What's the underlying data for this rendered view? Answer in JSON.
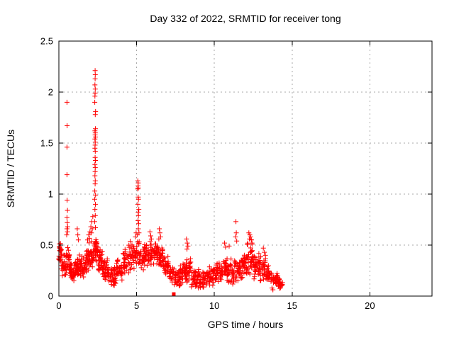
{
  "window": {
    "background": "#ffffff"
  },
  "chart_data": {
    "type": "scatter",
    "title": "Day 332 of 2022, SRMTID for receiver tong",
    "xlabel": "GPS time / hours",
    "ylabel": "SRMTID / TECUs",
    "xlim": [
      0,
      24
    ],
    "ylim": [
      0,
      2.5
    ],
    "x_ticks": [
      0,
      5,
      10,
      15,
      20
    ],
    "y_ticks": [
      0,
      0.5,
      1,
      1.5,
      2,
      2.5
    ],
    "grid": true,
    "legend": "none",
    "marker": "plus",
    "marker_color": "#ff0000",
    "grid_color": "#a8a8a8",
    "axis_color": "#000000",
    "square_point": [
      7.39,
      0.02
    ],
    "spike_points": [
      [
        0.52,
        1.9
      ],
      [
        0.53,
        1.67
      ],
      [
        0.52,
        1.46
      ],
      [
        0.52,
        1.19
      ],
      [
        0.53,
        0.94
      ],
      [
        0.55,
        0.84
      ],
      [
        0.52,
        0.77
      ],
      [
        0.54,
        0.72
      ],
      [
        0.56,
        0.68
      ],
      [
        0.52,
        0.66
      ],
      [
        0.55,
        0.63
      ],
      [
        0.5,
        0.6
      ],
      [
        1.18,
        0.66
      ],
      [
        1.22,
        0.6
      ],
      [
        1.25,
        0.55
      ],
      [
        1.85,
        0.55
      ],
      [
        1.92,
        0.6
      ],
      [
        2.0,
        0.63
      ],
      [
        2.06,
        0.68
      ],
      [
        2.12,
        0.73
      ],
      [
        2.18,
        0.78
      ],
      [
        2.09,
        0.62
      ],
      [
        2.15,
        0.66
      ],
      [
        2.33,
        2.21
      ],
      [
        2.34,
        2.17
      ],
      [
        2.33,
        2.13
      ],
      [
        2.32,
        2.07
      ],
      [
        2.34,
        2.03
      ],
      [
        2.33,
        1.99
      ],
      [
        2.32,
        1.96
      ],
      [
        2.31,
        1.9
      ],
      [
        2.36,
        1.81
      ],
      [
        2.34,
        1.78
      ],
      [
        2.35,
        1.64
      ],
      [
        2.32,
        1.62
      ],
      [
        2.34,
        1.6
      ],
      [
        2.33,
        1.58
      ],
      [
        2.35,
        1.56
      ],
      [
        2.32,
        1.54
      ],
      [
        2.34,
        1.51
      ],
      [
        2.33,
        1.48
      ],
      [
        2.32,
        1.45
      ],
      [
        2.34,
        1.42
      ],
      [
        2.33,
        1.36
      ],
      [
        2.35,
        1.33
      ],
      [
        2.32,
        1.29
      ],
      [
        2.34,
        1.26
      ],
      [
        2.33,
        1.22
      ],
      [
        2.32,
        1.18
      ],
      [
        2.34,
        1.13
      ],
      [
        2.33,
        1.1
      ],
      [
        2.31,
        1.03
      ],
      [
        2.36,
        0.99
      ],
      [
        2.3,
        0.95
      ],
      [
        2.35,
        0.9
      ],
      [
        2.32,
        0.85
      ],
      [
        2.34,
        0.79
      ],
      [
        2.3,
        0.73
      ],
      [
        2.35,
        0.67
      ],
      [
        5.08,
        1.13
      ],
      [
        5.1,
        1.11
      ],
      [
        5.09,
        1.08
      ],
      [
        5.11,
        1.06
      ],
      [
        5.07,
        1.05
      ],
      [
        5.1,
        0.97
      ],
      [
        5.12,
        0.95
      ],
      [
        5.08,
        0.9
      ],
      [
        5.14,
        0.85
      ],
      [
        5.1,
        0.82
      ],
      [
        5.12,
        0.79
      ],
      [
        5.09,
        0.74
      ],
      [
        5.13,
        0.71
      ],
      [
        5.11,
        0.66
      ],
      [
        5.15,
        0.62
      ],
      [
        5.05,
        0.6
      ],
      [
        4.92,
        0.58
      ],
      [
        4.97,
        0.62
      ],
      [
        5.86,
        0.63
      ],
      [
        5.91,
        0.59
      ],
      [
        5.95,
        0.56
      ],
      [
        6.46,
        0.66
      ],
      [
        6.5,
        0.62
      ],
      [
        6.54,
        0.58
      ],
      [
        6.43,
        0.56
      ],
      [
        8.21,
        0.56
      ],
      [
        8.26,
        0.52
      ],
      [
        8.3,
        0.49
      ],
      [
        8.24,
        0.46
      ],
      [
        10.66,
        0.52
      ],
      [
        10.72,
        0.48
      ],
      [
        10.95,
        0.49
      ],
      [
        11.39,
        0.73
      ],
      [
        11.41,
        0.62
      ],
      [
        11.36,
        0.58
      ],
      [
        11.44,
        0.54
      ],
      [
        12.22,
        0.62
      ],
      [
        12.28,
        0.6
      ],
      [
        12.33,
        0.58
      ],
      [
        12.25,
        0.56
      ],
      [
        12.38,
        0.55
      ],
      [
        12.42,
        0.52
      ],
      [
        13.15,
        0.47
      ],
      [
        13.22,
        0.43
      ],
      [
        13.28,
        0.4
      ]
    ],
    "band_clusters_note": "dense unresolvable point cloud, summarized as [x_start, x_end, count, y_min, y_max]",
    "band_clusters": [
      [
        0.0,
        0.15,
        22,
        0.27,
        0.55
      ],
      [
        0.15,
        0.45,
        28,
        0.17,
        0.46
      ],
      [
        0.45,
        0.7,
        26,
        0.2,
        0.5
      ],
      [
        0.7,
        1.0,
        32,
        0.12,
        0.35
      ],
      [
        1.0,
        1.3,
        32,
        0.13,
        0.38
      ],
      [
        1.3,
        1.6,
        30,
        0.17,
        0.42
      ],
      [
        1.6,
        1.9,
        30,
        0.22,
        0.48
      ],
      [
        1.9,
        2.2,
        28,
        0.27,
        0.58
      ],
      [
        2.2,
        2.5,
        32,
        0.3,
        0.62
      ],
      [
        2.5,
        2.8,
        32,
        0.22,
        0.52
      ],
      [
        2.8,
        3.2,
        36,
        0.15,
        0.38
      ],
      [
        3.2,
        3.7,
        38,
        0.09,
        0.3
      ],
      [
        3.7,
        4.1,
        32,
        0.14,
        0.38
      ],
      [
        4.1,
        4.5,
        32,
        0.2,
        0.47
      ],
      [
        4.5,
        4.9,
        34,
        0.24,
        0.55
      ],
      [
        4.9,
        5.2,
        24,
        0.28,
        0.58
      ],
      [
        5.2,
        5.6,
        34,
        0.25,
        0.52
      ],
      [
        5.6,
        6.0,
        34,
        0.27,
        0.55
      ],
      [
        6.0,
        6.4,
        34,
        0.29,
        0.55
      ],
      [
        6.4,
        6.7,
        28,
        0.27,
        0.55
      ],
      [
        6.7,
        7.1,
        32,
        0.17,
        0.42
      ],
      [
        7.1,
        7.5,
        28,
        0.1,
        0.33
      ],
      [
        7.5,
        7.9,
        32,
        0.07,
        0.3
      ],
      [
        7.9,
        8.2,
        28,
        0.12,
        0.38
      ],
      [
        8.2,
        8.5,
        28,
        0.12,
        0.4
      ],
      [
        8.5,
        9.0,
        38,
        0.05,
        0.28
      ],
      [
        9.0,
        9.5,
        38,
        0.05,
        0.26
      ],
      [
        9.5,
        10.0,
        38,
        0.08,
        0.3
      ],
      [
        10.0,
        10.5,
        38,
        0.1,
        0.35
      ],
      [
        10.5,
        10.9,
        32,
        0.12,
        0.42
      ],
      [
        10.9,
        11.3,
        32,
        0.1,
        0.38
      ],
      [
        11.3,
        11.7,
        32,
        0.12,
        0.42
      ],
      [
        11.7,
        12.1,
        32,
        0.15,
        0.45
      ],
      [
        12.1,
        12.5,
        34,
        0.2,
        0.56
      ],
      [
        12.5,
        12.9,
        32,
        0.15,
        0.48
      ],
      [
        12.9,
        13.3,
        32,
        0.12,
        0.4
      ],
      [
        13.3,
        13.7,
        32,
        0.08,
        0.3
      ],
      [
        13.7,
        14.1,
        30,
        0.06,
        0.25
      ],
      [
        14.1,
        14.4,
        20,
        0.05,
        0.2
      ]
    ],
    "seed": 1332
  }
}
